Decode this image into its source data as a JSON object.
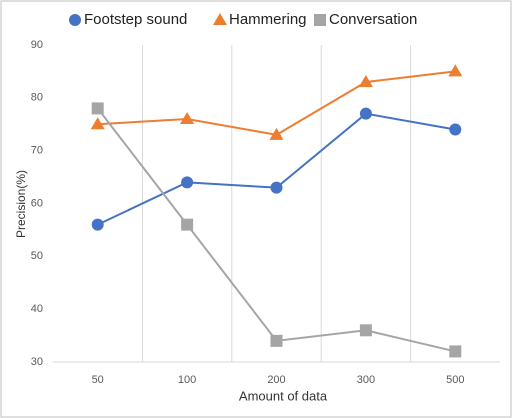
{
  "chart_data": {
    "type": "line",
    "x_label": "Amount of data",
    "y_label": "Precision(%)",
    "categories": [
      "50",
      "100",
      "200",
      "300",
      "500"
    ],
    "series": [
      {
        "name": "Footstep sound",
        "color": "#4472c4",
        "marker": "circle",
        "values": [
          56,
          64,
          63,
          77,
          74
        ]
      },
      {
        "name": "Hammering",
        "color": "#ed7d31",
        "marker": "triangle",
        "values": [
          75,
          76,
          73,
          83,
          85
        ]
      },
      {
        "name": "Conversation",
        "color": "#a5a5a5",
        "marker": "square",
        "values": [
          78,
          56,
          34,
          36,
          32
        ]
      }
    ],
    "ylim": [
      30,
      90
    ],
    "yticks": [
      30,
      40,
      50,
      60,
      70,
      80,
      90
    ],
    "grid": true,
    "legend": "top"
  }
}
